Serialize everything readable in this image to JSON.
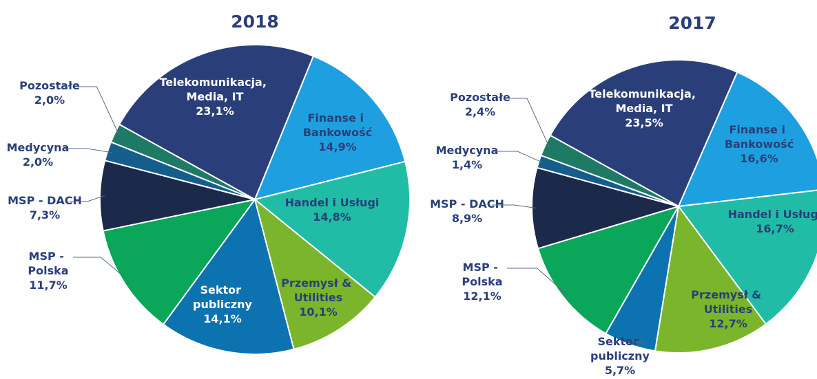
{
  "chart_data": [
    {
      "type": "pie",
      "title": "2018",
      "categories": [
        "Telekomunikacja, Media, IT",
        "Finanse i Bankowość",
        "Handel i Usługi",
        "Przemysł & Utilities",
        "Sektor publiczny",
        "MSP - Polska",
        "MSP - DACH",
        "Medycyna",
        "Pozostałe"
      ],
      "values": [
        23.1,
        14.9,
        14.8,
        10.1,
        14.1,
        11.7,
        7.3,
        2.0,
        2.0
      ],
      "value_labels": [
        "23,1%",
        "14,9%",
        "14,8%",
        "10,1%",
        "14,1%",
        "11,7%",
        "7,3%",
        "2,0%",
        "2,0%"
      ],
      "colors": [
        "#2a3f7a",
        "#1ea0e0",
        "#20bca5",
        "#7ab52c",
        "#0d72b0",
        "#0aa65a",
        "#1b2a4a",
        "#155e8c",
        "#1e7a65"
      ]
    },
    {
      "type": "pie",
      "title": "2017",
      "categories": [
        "Telekomunikacja, Media, IT",
        "Finanse i Bankowość",
        "Handel i Usługi",
        "Przemysł & Utilities",
        "Sektor publiczny",
        "MSP - Polska",
        "MSP - DACH",
        "Medycyna",
        "Pozostałe"
      ],
      "values": [
        23.5,
        16.6,
        16.7,
        12.7,
        5.7,
        12.1,
        8.9,
        1.4,
        2.4
      ],
      "value_labels": [
        "23,5%",
        "16,6%",
        "16,7%",
        "12,7%",
        "5,7%",
        "12,1%",
        "8,9%",
        "1,4%",
        "2,4%"
      ],
      "colors": [
        "#2a3f7a",
        "#1ea0e0",
        "#20bca5",
        "#7ab52c",
        "#0d72b0",
        "#0aa65a",
        "#1b2a4a",
        "#155e8c",
        "#1e7a65"
      ]
    }
  ]
}
